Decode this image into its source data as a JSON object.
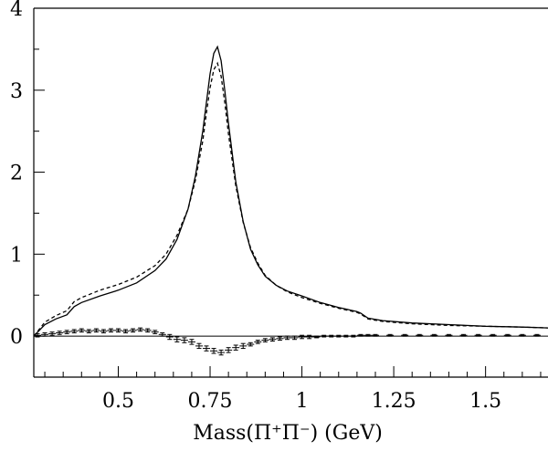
{
  "chart_data": {
    "type": "line",
    "title": "",
    "xlabel": "Mass(Π⁺Π⁻)  (GeV)",
    "ylabel": "",
    "xlim": [
      0.27,
      1.67
    ],
    "ylim": [
      -0.5,
      4.0
    ],
    "x_ticks": [
      0.5,
      0.75,
      1,
      1.25,
      1.5
    ],
    "x_tick_labels": [
      "0.5",
      "0.75",
      "1",
      "1.25",
      "1.5"
    ],
    "y_ticks": [
      0,
      1,
      2,
      3,
      4
    ],
    "y_tick_labels": [
      "0",
      "1",
      "2",
      "3",
      "4"
    ],
    "zero_line": true,
    "grid": false,
    "series": [
      {
        "style": "solid",
        "x": [
          0.27,
          0.3,
          0.33,
          0.36,
          0.38,
          0.4,
          0.45,
          0.5,
          0.55,
          0.6,
          0.63,
          0.66,
          0.69,
          0.71,
          0.73,
          0.74,
          0.75,
          0.76,
          0.77,
          0.78,
          0.79,
          0.8,
          0.82,
          0.84,
          0.86,
          0.88,
          0.9,
          0.93,
          0.96,
          1.0,
          1.05,
          1.1,
          1.15,
          1.16,
          1.18,
          1.22,
          1.3,
          1.4,
          1.5,
          1.6,
          1.67
        ],
        "y": [
          0.0,
          0.14,
          0.21,
          0.26,
          0.36,
          0.41,
          0.49,
          0.56,
          0.65,
          0.8,
          0.94,
          1.18,
          1.55,
          1.95,
          2.5,
          2.85,
          3.2,
          3.45,
          3.53,
          3.36,
          3.0,
          2.6,
          1.88,
          1.4,
          1.06,
          0.87,
          0.73,
          0.62,
          0.55,
          0.49,
          0.41,
          0.35,
          0.3,
          0.28,
          0.22,
          0.19,
          0.16,
          0.14,
          0.12,
          0.11,
          0.1
        ]
      },
      {
        "style": "dashed",
        "x": [
          0.27,
          0.3,
          0.33,
          0.36,
          0.38,
          0.4,
          0.45,
          0.5,
          0.55,
          0.6,
          0.63,
          0.66,
          0.69,
          0.71,
          0.73,
          0.74,
          0.75,
          0.76,
          0.77,
          0.78,
          0.79,
          0.8,
          0.82,
          0.84,
          0.86,
          0.88,
          0.9,
          0.93,
          0.96,
          1.0,
          1.05,
          1.1,
          1.15,
          1.16,
          1.18,
          1.22,
          1.3,
          1.4,
          1.5,
          1.6,
          1.67
        ],
        "y": [
          0.0,
          0.17,
          0.25,
          0.31,
          0.42,
          0.47,
          0.56,
          0.63,
          0.72,
          0.86,
          1.0,
          1.23,
          1.55,
          1.9,
          2.38,
          2.72,
          3.03,
          3.25,
          3.33,
          3.17,
          2.85,
          2.47,
          1.83,
          1.39,
          1.08,
          0.89,
          0.74,
          0.62,
          0.54,
          0.47,
          0.4,
          0.34,
          0.29,
          0.27,
          0.21,
          0.18,
          0.15,
          0.13,
          0.12,
          0.11,
          0.1
        ]
      },
      {
        "style": "step-with-errorbars",
        "bin_width": 0.02,
        "x": [
          0.28,
          0.3,
          0.32,
          0.34,
          0.36,
          0.38,
          0.4,
          0.42,
          0.44,
          0.46,
          0.48,
          0.5,
          0.52,
          0.54,
          0.56,
          0.58,
          0.6,
          0.62,
          0.64,
          0.66,
          0.68,
          0.7,
          0.72,
          0.74,
          0.76,
          0.78,
          0.8,
          0.82,
          0.84,
          0.86,
          0.88,
          0.9,
          0.92,
          0.94,
          0.96,
          0.98,
          1.0,
          1.02,
          1.04,
          1.06,
          1.08,
          1.1,
          1.12,
          1.14,
          1.16,
          1.18,
          1.2,
          1.24,
          1.28,
          1.32,
          1.36,
          1.4,
          1.44,
          1.48,
          1.52,
          1.56,
          1.6,
          1.64
        ],
        "y": [
          0.01,
          0.02,
          0.03,
          0.04,
          0.05,
          0.06,
          0.07,
          0.06,
          0.07,
          0.06,
          0.07,
          0.07,
          0.06,
          0.07,
          0.08,
          0.07,
          0.05,
          0.02,
          -0.01,
          -0.04,
          -0.05,
          -0.07,
          -0.12,
          -0.15,
          -0.18,
          -0.2,
          -0.17,
          -0.14,
          -0.12,
          -0.1,
          -0.07,
          -0.05,
          -0.04,
          -0.03,
          -0.02,
          -0.02,
          -0.01,
          -0.01,
          -0.01,
          0.0,
          0.0,
          0.0,
          0.0,
          0.0,
          0.01,
          0.01,
          0.01,
          0.01,
          0.01,
          0.01,
          0.01,
          0.01,
          0.01,
          0.01,
          0.01,
          0.01,
          0.01,
          0.01
        ],
        "err": [
          0.02,
          0.02,
          0.02,
          0.02,
          0.02,
          0.02,
          0.02,
          0.02,
          0.02,
          0.02,
          0.02,
          0.02,
          0.02,
          0.02,
          0.02,
          0.02,
          0.02,
          0.02,
          0.03,
          0.03,
          0.03,
          0.03,
          0.03,
          0.03,
          0.03,
          0.03,
          0.03,
          0.03,
          0.03,
          0.02,
          0.02,
          0.02,
          0.02,
          0.02,
          0.02,
          0.02,
          0.02,
          0.02,
          0.01,
          0.01,
          0.01,
          0.01,
          0.01,
          0.01,
          0.01,
          0.01,
          0.01,
          0.01,
          0.01,
          0.01,
          0.01,
          0.01,
          0.01,
          0.01,
          0.01,
          0.01,
          0.01,
          0.01
        ]
      }
    ]
  }
}
